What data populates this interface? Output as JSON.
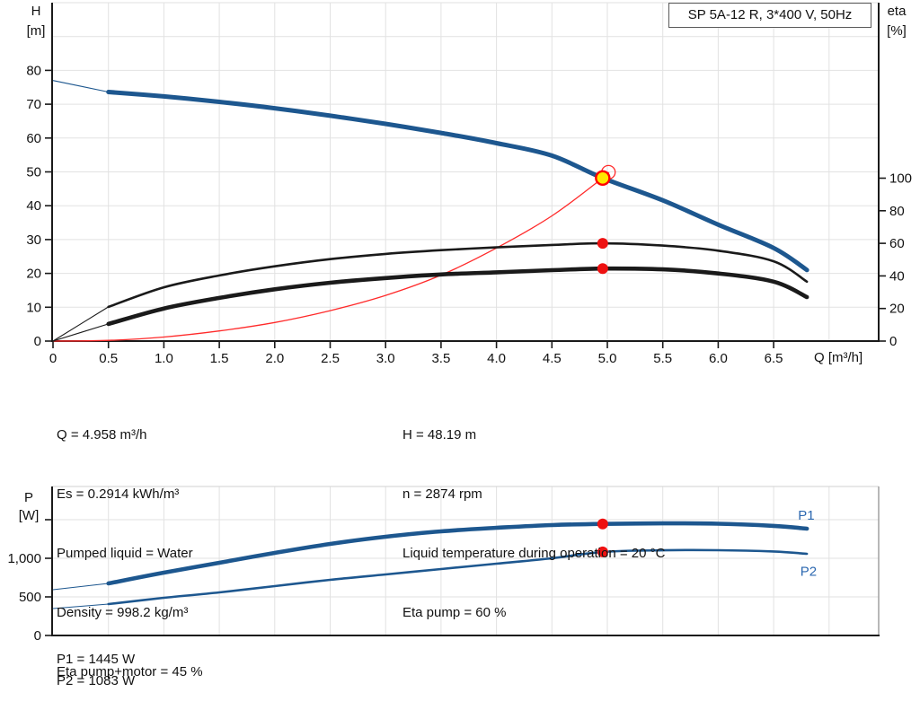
{
  "title_box": "SP 5A-12 R, 3*400 V, 50Hz",
  "axis_labels": {
    "h_symbol": "H",
    "h_unit": "[m]",
    "eta_symbol": "eta",
    "eta_unit": "[%]",
    "q_label": "Q [m³/h]",
    "p_symbol": "P",
    "p_unit": "[W]"
  },
  "info_left": {
    "lines": [
      "Q = 4.958 m³/h",
      "Es = 0.2914 kWh/m³",
      "Pumped liquid = Water",
      "Density = 998.2 kg/m³",
      "Eta pump+motor = 45 %"
    ]
  },
  "info_right": {
    "lines": [
      "H = 48.19 m",
      "n = 2874 rpm",
      "Liquid temperature during operation = 20 °C",
      "Eta pump = 60 %"
    ]
  },
  "power_info": {
    "lines": [
      "P1 = 1445 W",
      "P2 = 1083 W"
    ]
  },
  "colors": {
    "curve_blue": "#1d578f",
    "label_blue": "#2c68b0",
    "red": "#ee1111",
    "red_curve": "#ff2a2a",
    "duty_yellow": "#ffe900",
    "grid": "#e2e2e2",
    "axis": "#1a1a1a",
    "border_gray": "#999999",
    "top_border": "#d2d2d2",
    "text": "#111111"
  },
  "chart_data": [
    {
      "type": "line",
      "title": "SP 5A-12 R, 3*400 V, 50Hz",
      "xlabel": "Q [m³/h]",
      "ylabel_left": "H [m]",
      "ylabel_right": "eta [%]",
      "x_ticks": [
        0,
        0.5,
        1.0,
        1.5,
        2.0,
        2.5,
        3.0,
        3.5,
        4.0,
        4.5,
        5.0,
        5.5,
        6.0,
        6.5
      ],
      "x_grid_max": 7.0,
      "xlim": [
        0,
        7.45
      ],
      "h_ticks": [
        0,
        10,
        20,
        30,
        40,
        50,
        60,
        70,
        80
      ],
      "h_grid_max": 100,
      "hlim": [
        0,
        100
      ],
      "eta_ticks": [
        0,
        20,
        40,
        60,
        80,
        100
      ],
      "grid": true,
      "series": [
        {
          "name": "H curve",
          "axis": "h",
          "thin_until": 0.5,
          "width": 5,
          "q": [
            0,
            0.5,
            1,
            1.5,
            2,
            2.5,
            3,
            3.5,
            4,
            4.5,
            4.958,
            5.5,
            6,
            6.5,
            6.8
          ],
          "v": [
            77,
            73.6,
            72.3,
            70.7,
            68.8,
            66.6,
            64.2,
            61.5,
            58.5,
            54.8,
            48.19,
            41.6,
            34.4,
            27.5,
            21
          ]
        },
        {
          "name": "eta pump",
          "axis": "eta",
          "thin_until": 0.5,
          "width": 2.6,
          "q": [
            0,
            0.5,
            1,
            1.5,
            2,
            2.5,
            3,
            3.5,
            4,
            4.5,
            4.958,
            5.5,
            6,
            6.5,
            6.8
          ],
          "v": [
            0,
            21,
            33,
            40.3,
            45.9,
            50.3,
            53.5,
            55.8,
            57.5,
            59,
            60,
            58.6,
            55.5,
            49,
            36.5
          ]
        },
        {
          "name": "eta pump+motor",
          "axis": "eta",
          "thin_until": 0.5,
          "width": 4.6,
          "q": [
            0,
            0.5,
            1,
            1.5,
            2,
            2.5,
            3,
            3.5,
            4,
            4.5,
            4.958,
            5.5,
            6,
            6.5,
            6.8
          ],
          "v": [
            0,
            10.5,
            20,
            26.5,
            31.8,
            35.8,
            38.7,
            40.9,
            42.2,
            43.5,
            44.5,
            44,
            41.5,
            36.5,
            27
          ]
        },
        {
          "name": "system curve",
          "axis": "h",
          "width": 1.3,
          "color_key": "red_curve",
          "q": [
            0,
            0.5,
            1,
            1.5,
            2,
            2.5,
            3,
            3.5,
            4,
            4.5,
            4.958,
            5.01
          ],
          "v": [
            0,
            0.2,
            1.2,
            3,
            5.5,
            9,
            13.5,
            19.5,
            27.5,
            37,
            48.19,
            49.9
          ]
        }
      ],
      "markers": {
        "duty_point": {
          "q": 4.958,
          "h": 48.19
        },
        "requested_point": {
          "q": 5.01,
          "h": 49.9
        },
        "eta_dots": [
          {
            "q": 4.958,
            "eta": 60
          },
          {
            "q": 4.958,
            "eta": 44.5
          }
        ]
      }
    },
    {
      "type": "line",
      "ylabel": "P [W]",
      "p_ticks": [
        0,
        500,
        1000,
        1500
      ],
      "p_tick_labels": [
        "0",
        "500",
        "1,000"
      ],
      "plim": [
        0,
        1930
      ],
      "xlim": [
        0,
        7.45
      ],
      "x_grid_max": 7.0,
      "grid": true,
      "series": [
        {
          "name": "P1",
          "axis": "p",
          "thin_until": 0.5,
          "width": 4.6,
          "label": "P1",
          "label_at": {
            "q": 6.72,
            "p": 1560
          },
          "q": [
            0,
            0.5,
            1,
            1.5,
            2,
            2.5,
            3,
            3.5,
            4,
            4.5,
            4.958,
            5.5,
            6,
            6.5,
            6.8
          ],
          "v": [
            593,
            674,
            814,
            942,
            1070,
            1186,
            1279,
            1349,
            1395,
            1430,
            1445,
            1452,
            1448,
            1420,
            1384
          ]
        },
        {
          "name": "P2",
          "axis": "p",
          "thin_until": 0.5,
          "width": 2.6,
          "label": "P2",
          "label_at": {
            "q": 6.74,
            "p": 830
          },
          "q": [
            0,
            0.5,
            1,
            1.5,
            2,
            2.5,
            3,
            3.5,
            4,
            4.5,
            4.958,
            5.5,
            6,
            6.5,
            6.8
          ],
          "v": [
            349,
            407,
            488,
            558,
            640,
            721,
            791,
            861,
            930,
            1000,
            1083,
            1104,
            1105,
            1088,
            1058
          ]
        },
        {
          "name": "operating points",
          "dots": [
            {
              "q": 4.958,
              "p": 1445
            },
            {
              "q": 4.958,
              "p": 1083
            }
          ]
        }
      ]
    }
  ]
}
